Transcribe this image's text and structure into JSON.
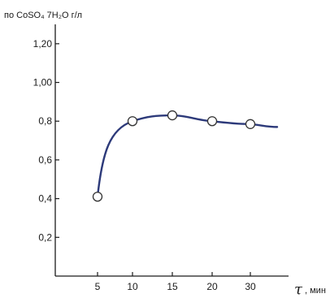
{
  "chart_data": {
    "type": "line",
    "ylabel": "по CoSO₄ 7H₂O г/л",
    "xlabel_symbol": "τ",
    "xlabel_unit": ", мин",
    "x_categories": [
      "5",
      "10",
      "15",
      "20",
      "30"
    ],
    "y_ticks": [
      "0,2",
      "0,4",
      "0,6",
      "0,8",
      "1,00",
      "1,20"
    ],
    "ylim": [
      0,
      1.3
    ],
    "series": [
      {
        "markers": true,
        "points": [
          {
            "x": "5",
            "y": 0.41
          },
          {
            "x": "10",
            "y": 0.8
          },
          {
            "x": "15",
            "y": 0.83
          },
          {
            "x": "20",
            "y": 0.8
          },
          {
            "x": "30",
            "y": 0.785
          }
        ],
        "curve_extends_to_y": 0.77
      }
    ],
    "grid": false,
    "colors": {
      "line": "#2d3a7a",
      "marker": "#333333"
    }
  }
}
